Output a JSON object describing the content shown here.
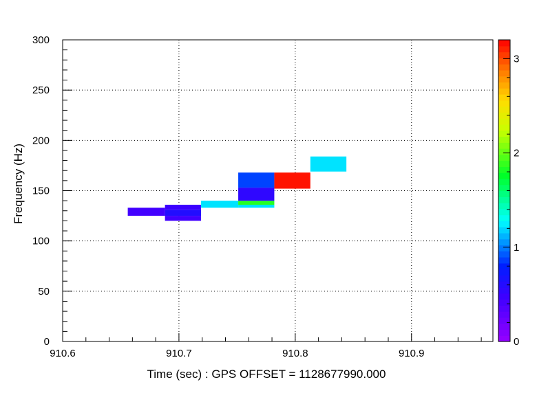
{
  "chart_data": {
    "type": "heatmap",
    "title": "",
    "xlabel": "Time (sec) : GPS OFFSET = 1128677990.000",
    "ylabel": "Frequency (Hz)",
    "xlim": [
      910.6,
      910.97
    ],
    "ylim": [
      0,
      300
    ],
    "x_ticks": [
      910.6,
      910.7,
      910.8,
      910.9
    ],
    "x_tick_labels": [
      "910.6",
      "910.7",
      "910.8",
      "910.9"
    ],
    "y_ticks": [
      0,
      50,
      100,
      150,
      200,
      250,
      300
    ],
    "y_tick_labels": [
      "0",
      "50",
      "100",
      "150",
      "200",
      "250",
      "300"
    ],
    "grid": true,
    "colorbar": {
      "range": [
        0,
        3.2
      ],
      "ticks": [
        0,
        1,
        2,
        3
      ],
      "tick_labels": [
        "0",
        "1",
        "2",
        "3"
      ]
    },
    "tiles": [
      {
        "x0": 910.656,
        "x1": 910.688,
        "y0": 125,
        "y1": 133,
        "value": 0.45
      },
      {
        "x0": 910.688,
        "x1": 910.719,
        "y0": 120,
        "y1": 125,
        "value": 0.45
      },
      {
        "x0": 910.688,
        "x1": 910.719,
        "y0": 125,
        "y1": 131,
        "value": 0.62
      },
      {
        "x0": 910.688,
        "x1": 910.719,
        "y0": 131,
        "y1": 136,
        "value": 0.48
      },
      {
        "x0": 910.719,
        "x1": 910.751,
        "y0": 133,
        "y1": 140,
        "value": 1.22
      },
      {
        "x0": 910.751,
        "x1": 910.782,
        "y0": 133,
        "y1": 136,
        "value": 1.22
      },
      {
        "x0": 910.751,
        "x1": 910.782,
        "y0": 136,
        "y1": 140,
        "value": 1.85
      },
      {
        "x0": 910.751,
        "x1": 910.782,
        "y0": 140,
        "y1": 153,
        "value": 0.55
      },
      {
        "x0": 910.751,
        "x1": 910.782,
        "y0": 153,
        "y1": 168,
        "value": 0.88
      },
      {
        "x0": 910.782,
        "x1": 910.813,
        "y0": 152,
        "y1": 168,
        "value": 3.15
      },
      {
        "x0": 910.813,
        "x1": 910.844,
        "y0": 169,
        "y1": 184,
        "value": 1.22
      }
    ]
  }
}
